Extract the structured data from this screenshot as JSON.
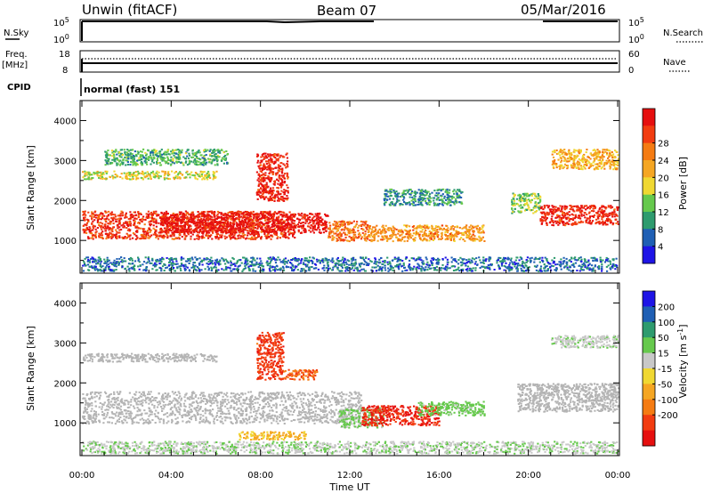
{
  "header": {
    "station": "Unwin (fitACF)",
    "beam": "Beam 07",
    "date": "05/Mar/2016"
  },
  "panels": {
    "nsky": {
      "label": "N.Sky",
      "left_ticks": [
        "10^5",
        "10^0"
      ],
      "right_ticks": [
        "10^5",
        "10^0"
      ],
      "right_label": "N.Search"
    },
    "freq": {
      "label_line1": "Freq.",
      "label_line2": "[MHz]",
      "left_ticks": [
        "18",
        "8"
      ],
      "right_ticks": [
        "60",
        "0"
      ],
      "right_label": "Nave"
    },
    "cpid": {
      "label": "CPID",
      "value": "normal (fast) 151"
    }
  },
  "colors": {
    "power_scale": [
      "#1e14e6",
      "#1f5fb4",
      "#2e9b6e",
      "#66c94d",
      "#f0d832",
      "#f5a623",
      "#f57b12",
      "#f23c10",
      "#e60f0f"
    ],
    "velocity_scale": [
      "#1e14e6",
      "#1f5fb4",
      "#2e9b6e",
      "#66c94d",
      "#c8c8c8",
      "#f0d832",
      "#f5a623",
      "#f57b12",
      "#f23c10",
      "#e60f0f"
    ],
    "ground_scatter": "#b4b4b4"
  },
  "chart_data": [
    {
      "type": "heatmap",
      "title": "",
      "ylabel": "Slant Range [km]",
      "xlabel": "Time UT",
      "ylim": [
        180,
        4500
      ],
      "xlim": [
        "00:00",
        "24:00"
      ],
      "y_ticks": [
        "1000",
        "2000",
        "3000",
        "4000"
      ],
      "x_ticks": [
        "00:00",
        "04:00",
        "08:00",
        "12:00",
        "16:00",
        "20:00",
        "00:00"
      ],
      "colorbar": {
        "label": "Power [dB]",
        "ticks": [
          "4",
          "8",
          "12",
          "16",
          "20",
          "24",
          "28"
        ],
        "range": [
          0,
          30
        ]
      },
      "echo_regions": [
        {
          "t_start": 0.0,
          "t_end": 9.5,
          "r_low": 1050,
          "r_high": 1750,
          "value": 26
        },
        {
          "t_start": 3.5,
          "t_end": 11.0,
          "r_low": 1200,
          "r_high": 1700,
          "value": 29
        },
        {
          "t_start": 7.8,
          "t_end": 9.2,
          "r_low": 2000,
          "r_high": 3200,
          "value": 27
        },
        {
          "t_start": 0.0,
          "t_end": 6.0,
          "r_low": 2550,
          "r_high": 2750,
          "value": 15
        },
        {
          "t_start": 1.0,
          "t_end": 6.5,
          "r_low": 2900,
          "r_high": 3300,
          "value": 10
        },
        {
          "t_start": 11.0,
          "t_end": 12.8,
          "r_low": 1000,
          "r_high": 1500,
          "value": 22
        },
        {
          "t_start": 12.8,
          "t_end": 18.0,
          "r_low": 1000,
          "r_high": 1400,
          "value": 20
        },
        {
          "t_start": 13.5,
          "t_end": 17.0,
          "r_low": 1900,
          "r_high": 2300,
          "value": 8
        },
        {
          "t_start": 19.2,
          "t_end": 20.5,
          "r_low": 1700,
          "r_high": 2200,
          "value": 12
        },
        {
          "t_start": 20.5,
          "t_end": 24.0,
          "r_low": 1400,
          "r_high": 1900,
          "value": 27
        },
        {
          "t_start": 21.0,
          "t_end": 24.0,
          "r_low": 2800,
          "r_high": 3300,
          "value": 18
        },
        {
          "t_start": 0.0,
          "t_end": 24.0,
          "r_low": 250,
          "r_high": 600,
          "value": 6
        }
      ]
    },
    {
      "type": "heatmap",
      "title": "",
      "ylabel": "Slant Range [km]",
      "xlabel": "Time UT",
      "ylim": [
        180,
        4500
      ],
      "xlim": [
        "00:00",
        "24:00"
      ],
      "y_ticks": [
        "1000",
        "2000",
        "3000",
        "4000"
      ],
      "x_ticks": [
        "00:00",
        "04:00",
        "08:00",
        "12:00",
        "16:00",
        "20:00",
        "00:00"
      ],
      "colorbar": {
        "label": "Velocity [m s^-1]",
        "ticks": [
          "200",
          "100",
          "50",
          "15",
          "-15",
          "-50",
          "-100",
          "-200"
        ],
        "range": [
          -250,
          250
        ]
      },
      "echo_regions": [
        {
          "t_start": 0.0,
          "t_end": 12.5,
          "r_low": 1000,
          "r_high": 1800,
          "value": 0,
          "ground_scatter": true
        },
        {
          "t_start": 7.8,
          "t_end": 9.0,
          "r_low": 2100,
          "r_high": 3300,
          "value": -180
        },
        {
          "t_start": 9.0,
          "t_end": 10.5,
          "r_low": 2100,
          "r_high": 2350,
          "value": -150
        },
        {
          "t_start": 0.0,
          "t_end": 6.0,
          "r_low": 2550,
          "r_high": 2750,
          "value": 0,
          "ground_scatter": true
        },
        {
          "t_start": 11.5,
          "t_end": 13.5,
          "r_low": 900,
          "r_high": 1400,
          "value": 60
        },
        {
          "t_start": 12.5,
          "t_end": 16.0,
          "r_low": 950,
          "r_high": 1450,
          "value": -200
        },
        {
          "t_start": 15.0,
          "t_end": 18.0,
          "r_low": 1200,
          "r_high": 1550,
          "value": 70
        },
        {
          "t_start": 7.0,
          "t_end": 10.0,
          "r_low": 600,
          "r_high": 800,
          "value": -60
        },
        {
          "t_start": 19.5,
          "t_end": 24.0,
          "r_low": 1300,
          "r_high": 2000,
          "value": 0,
          "ground_scatter": true
        },
        {
          "t_start": 21.0,
          "t_end": 24.0,
          "r_low": 2900,
          "r_high": 3200,
          "value": 30
        },
        {
          "t_start": 0.0,
          "t_end": 24.0,
          "r_low": 250,
          "r_high": 550,
          "value": 40
        }
      ]
    }
  ]
}
